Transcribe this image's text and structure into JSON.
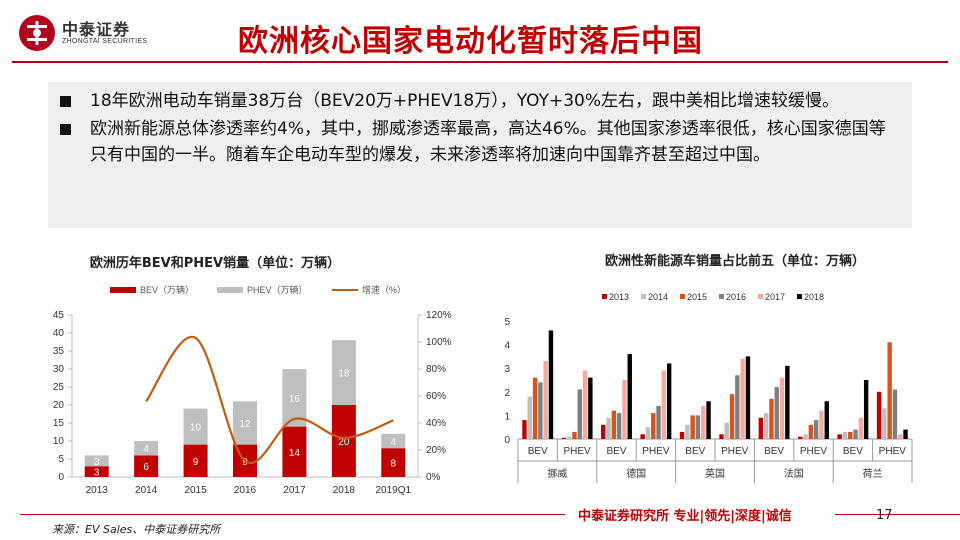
{
  "header": {
    "logo_cn": "中泰证券",
    "logo_en": "ZHONGTAI SECURITIES",
    "title": "欧洲核心国家电动化暂时落后中国",
    "brand_color": "#b4001f"
  },
  "bullets": [
    "18年欧洲电动车销量38万台（BEV20万+PHEV18万），YOY+30%左右，跟中美相比增速较缓慢。",
    "欧洲新能源总体渗透率约4%，其中，挪威渗透率最高，高达46%。其他国家渗透率很低，核心国家德国等只有中国的一半。随着车企电动车型的爆发，未来渗透率将加速向中国靠齐甚至超过中国。"
  ],
  "chart_data": [
    {
      "type": "bar",
      "stacked": true,
      "title": "欧洲历年BEV和PHEV销量（单位：万辆）",
      "categories": [
        "2013",
        "2014",
        "2015",
        "2016",
        "2017",
        "2018",
        "2019Q1"
      ],
      "series": [
        {
          "name": "BEV（万辆）",
          "color": "#c00000",
          "values": [
            3,
            6,
            9,
            9,
            14,
            20,
            8
          ]
        },
        {
          "name": "PHEV（万辆）",
          "color": "#bfbfbf",
          "values": [
            3,
            4,
            10,
            12,
            16,
            18,
            4
          ]
        }
      ],
      "line_series": {
        "name": "增速（%）",
        "color": "#c55a11",
        "axis": "right",
        "values": [
          null,
          56,
          103,
          12,
          43,
          29,
          42
        ]
      },
      "ylim_left": [
        0,
        45
      ],
      "yticks_left": [
        "0",
        "5",
        "10",
        "15",
        "20",
        "25",
        "30",
        "35",
        "40",
        "45"
      ],
      "ylim_right": [
        0,
        120
      ],
      "yticks_right": [
        "0%",
        "20%",
        "40%",
        "60%",
        "80%",
        "100%",
        "120%"
      ],
      "legend_position": "top"
    },
    {
      "type": "bar",
      "title": "欧洲性新能源车销量占比前五（单位：万辆）",
      "groups": [
        "挪威",
        "德国",
        "英国",
        "法国",
        "荷兰"
      ],
      "categories": [
        "BEV",
        "PHEV",
        "BEV",
        "PHEV",
        "BEV",
        "PHEV",
        "BEV",
        "PHEV",
        "BEV",
        "PHEV"
      ],
      "series": [
        {
          "name": "2013",
          "color": "#c00000",
          "values": [
            0.8,
            0.05,
            0.6,
            0.2,
            0.3,
            0.2,
            0.9,
            0.1,
            0.2,
            2.0
          ]
        },
        {
          "name": "2014",
          "color": "#bfbfbf",
          "values": [
            1.8,
            0.1,
            0.9,
            0.5,
            0.6,
            0.7,
            1.1,
            0.2,
            0.3,
            1.3
          ]
        },
        {
          "name": "2015",
          "color": "#d9531e",
          "values": [
            2.6,
            0.3,
            1.2,
            1.1,
            1.0,
            1.9,
            1.7,
            0.6,
            0.3,
            4.1
          ]
        },
        {
          "name": "2016",
          "color": "#7f7f7f",
          "values": [
            2.4,
            2.1,
            1.1,
            1.4,
            1.0,
            2.7,
            2.2,
            0.8,
            0.4,
            2.1
          ]
        },
        {
          "name": "2017",
          "color": "#f4a9a0",
          "values": [
            3.3,
            2.9,
            2.5,
            2.9,
            1.4,
            3.4,
            2.6,
            1.2,
            0.9,
            0.2
          ]
        },
        {
          "name": "2018",
          "color": "#000000",
          "values": [
            4.6,
            2.6,
            3.6,
            3.2,
            1.6,
            3.5,
            3.1,
            1.6,
            2.5,
            0.4
          ]
        }
      ],
      "ylim": [
        0,
        5
      ],
      "yticks": [
        "0",
        "1",
        "2",
        "3",
        "4",
        "5"
      ],
      "legend_position": "top"
    }
  ],
  "footer": {
    "slogan": "中泰证券研究所 专业|领先|深度|诚信",
    "page_number": "17",
    "source": "来源：EV Sales、中泰证券研究所"
  }
}
